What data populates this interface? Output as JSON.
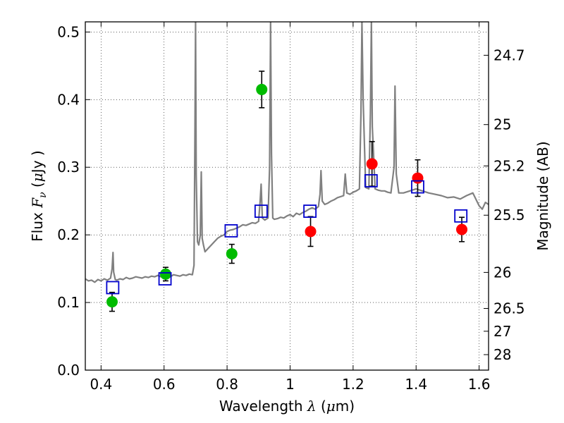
{
  "chart_data": {
    "type": "scatter",
    "title": "",
    "xlabel": "Wavelength",
    "xlabel_symbol": "λ",
    "xlabel_unit_open": "(",
    "xlabel_unit_mu": "μ",
    "xlabel_unit_rest": "m)",
    "ylabel": "Flux",
    "ylabel_symbol": "F",
    "ylabel_subscript": "ν",
    "ylabel_unit_open": "(",
    "ylabel_unit_mu": "μ",
    "ylabel_unit_rest": "Jy )",
    "y2label": "Magnitude (AB)",
    "xlim": [
      0.35,
      1.63
    ],
    "ylim": [
      0.0,
      0.515
    ],
    "grid": true,
    "x_ticks": [
      {
        "value": 0.4,
        "label": "0.4"
      },
      {
        "value": 0.6,
        "label": "0.6"
      },
      {
        "value": 0.8,
        "label": "0.8"
      },
      {
        "value": 1.0,
        "label": "1"
      },
      {
        "value": 1.2,
        "label": "1.2"
      },
      {
        "value": 1.4,
        "label": "1.4"
      },
      {
        "value": 1.6,
        "label": "1.6"
      }
    ],
    "y_ticks": [
      {
        "value": 0.0,
        "label": "0.0"
      },
      {
        "value": 0.1,
        "label": "0.1"
      },
      {
        "value": 0.2,
        "label": "0.2"
      },
      {
        "value": 0.3,
        "label": "0.3"
      },
      {
        "value": 0.4,
        "label": "0.4"
      },
      {
        "value": 0.5,
        "label": "0.5"
      }
    ],
    "y2_ticks": [
      {
        "flux": 0.4656,
        "label": "24.7"
      },
      {
        "flux": 0.3631,
        "label": "25"
      },
      {
        "flux": 0.302,
        "label": "25.2"
      },
      {
        "flux": 0.2291,
        "label": "25.5"
      },
      {
        "flux": 0.1445,
        "label": "26"
      },
      {
        "flux": 0.0912,
        "label": "26.5"
      },
      {
        "flux": 0.0575,
        "label": "27"
      },
      {
        "flux": 0.0229,
        "label": "28"
      }
    ],
    "series": [
      {
        "name": "model spectrum",
        "kind": "line",
        "color": "#808080",
        "x": [
          0.35,
          0.36,
          0.37,
          0.38,
          0.39,
          0.4,
          0.41,
          0.42,
          0.43,
          0.435,
          0.438,
          0.44,
          0.445,
          0.45,
          0.46,
          0.47,
          0.48,
          0.49,
          0.5,
          0.51,
          0.52,
          0.53,
          0.54,
          0.55,
          0.56,
          0.57,
          0.58,
          0.59,
          0.6,
          0.61,
          0.62,
          0.63,
          0.64,
          0.65,
          0.66,
          0.67,
          0.68,
          0.69,
          0.695,
          0.698,
          0.7,
          0.702,
          0.706,
          0.71,
          0.715,
          0.718,
          0.721,
          0.725,
          0.73,
          0.74,
          0.75,
          0.76,
          0.77,
          0.78,
          0.79,
          0.8,
          0.81,
          0.82,
          0.83,
          0.84,
          0.85,
          0.86,
          0.87,
          0.88,
          0.89,
          0.9,
          0.905,
          0.908,
          0.912,
          0.92,
          0.93,
          0.935,
          0.938,
          0.941,
          0.945,
          0.95,
          0.96,
          0.97,
          0.98,
          0.99,
          1.0,
          1.01,
          1.02,
          1.03,
          1.04,
          1.05,
          1.06,
          1.07,
          1.08,
          1.09,
          1.095,
          1.098,
          1.102,
          1.11,
          1.12,
          1.13,
          1.14,
          1.15,
          1.17,
          1.175,
          1.18,
          1.19,
          1.2,
          1.21,
          1.22,
          1.225,
          1.228,
          1.232,
          1.24,
          1.25,
          1.255,
          1.258,
          1.261,
          1.27,
          1.28,
          1.29,
          1.3,
          1.31,
          1.32,
          1.33,
          1.333,
          1.337,
          1.345,
          1.36,
          1.38,
          1.4,
          1.42,
          1.44,
          1.46,
          1.48,
          1.5,
          1.52,
          1.54,
          1.56,
          1.58,
          1.6,
          1.61,
          1.62,
          1.63
        ],
        "y": [
          0.135,
          0.132,
          0.133,
          0.13,
          0.134,
          0.132,
          0.135,
          0.133,
          0.136,
          0.15,
          0.174,
          0.145,
          0.134,
          0.133,
          0.135,
          0.134,
          0.137,
          0.135,
          0.136,
          0.138,
          0.137,
          0.136,
          0.138,
          0.137,
          0.139,
          0.138,
          0.14,
          0.138,
          0.139,
          0.14,
          0.138,
          0.141,
          0.14,
          0.139,
          0.141,
          0.14,
          0.142,
          0.141,
          0.155,
          0.35,
          0.515,
          0.29,
          0.19,
          0.185,
          0.2,
          0.293,
          0.195,
          0.185,
          0.175,
          0.18,
          0.185,
          0.19,
          0.195,
          0.198,
          0.2,
          0.205,
          0.207,
          0.208,
          0.21,
          0.212,
          0.215,
          0.214,
          0.216,
          0.218,
          0.217,
          0.22,
          0.25,
          0.275,
          0.225,
          0.222,
          0.225,
          0.3,
          0.515,
          0.32,
          0.225,
          0.223,
          0.224,
          0.226,
          0.225,
          0.228,
          0.23,
          0.227,
          0.232,
          0.23,
          0.233,
          0.235,
          0.238,
          0.24,
          0.238,
          0.242,
          0.26,
          0.295,
          0.25,
          0.245,
          0.247,
          0.25,
          0.252,
          0.255,
          0.258,
          0.29,
          0.262,
          0.26,
          0.263,
          0.265,
          0.268,
          0.38,
          0.515,
          0.4,
          0.27,
          0.268,
          0.38,
          0.515,
          0.36,
          0.268,
          0.266,
          0.265,
          0.265,
          0.263,
          0.262,
          0.3,
          0.42,
          0.29,
          0.262,
          0.262,
          0.265,
          0.268,
          0.265,
          0.262,
          0.26,
          0.258,
          0.255,
          0.256,
          0.253,
          0.258,
          0.262,
          0.243,
          0.238,
          0.248,
          0.245
        ]
      },
      {
        "name": "observed (green)",
        "kind": "points",
        "color": "#00bb00",
        "x": [
          0.435,
          0.605,
          0.815,
          0.91
        ],
        "y": [
          0.101,
          0.142,
          0.172,
          0.415
        ],
        "err": [
          0.014,
          0.01,
          0.014,
          0.027
        ]
      },
      {
        "name": "observed (red)",
        "kind": "points",
        "color": "#ff0000",
        "x": [
          1.065,
          1.26,
          1.405,
          1.545
        ],
        "y": [
          0.205,
          0.305,
          0.284,
          0.208
        ],
        "err": [
          0.022,
          0.033,
          0.027,
          0.018
        ]
      },
      {
        "name": "model photometry",
        "kind": "squares",
        "color": "#0000cc",
        "x": [
          0.437,
          0.603,
          0.813,
          0.908,
          1.063,
          1.257,
          1.405,
          1.542
        ],
        "y": [
          0.122,
          0.135,
          0.206,
          0.235,
          0.235,
          0.28,
          0.271,
          0.228
        ]
      }
    ]
  }
}
